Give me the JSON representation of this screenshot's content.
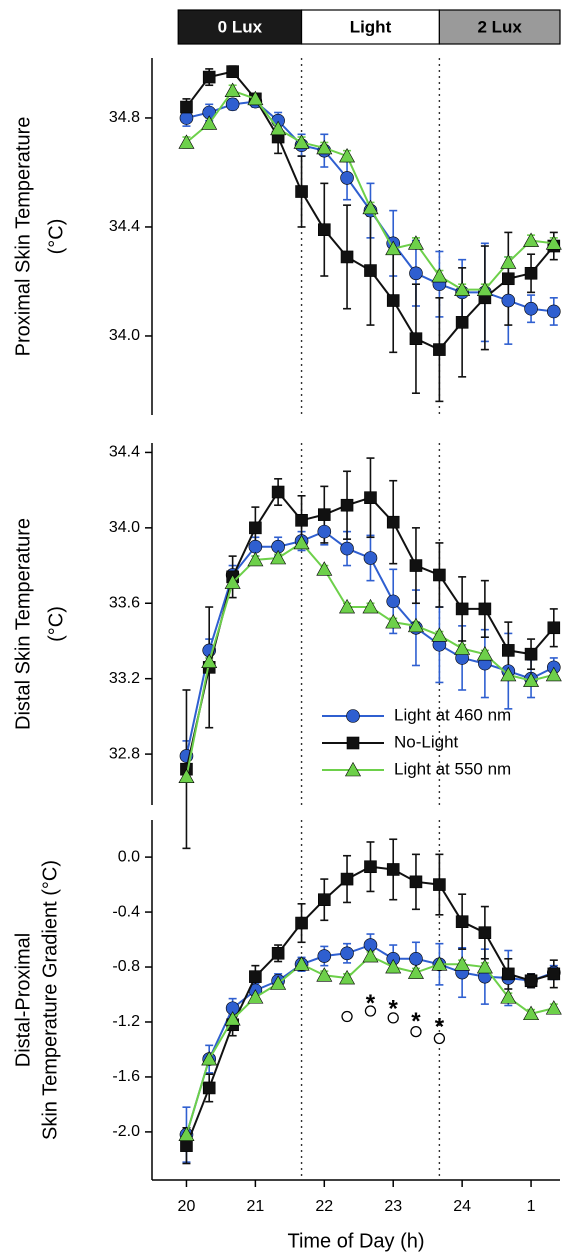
{
  "chart_data": [
    {
      "type": "line",
      "ylabel": [
        "Proximal Skin Temperature",
        "(°C)"
      ],
      "phases": [
        {
          "label": "0 Lux",
          "start": 19.88,
          "end": 21.67,
          "color": "#1a1a1a",
          "text_color": "#ffffff"
        },
        {
          "label": "Light",
          "start": 21.67,
          "end": 23.67,
          "color": "#ffffff",
          "text_color": "#000000"
        },
        {
          "label": "2 Lux",
          "start": 23.67,
          "end": 25.42,
          "color": "#9a9a9a",
          "text_color": "#000000"
        }
      ],
      "vlines": [
        21.67,
        23.67
      ],
      "x": [
        20,
        20.33,
        20.67,
        21,
        21.33,
        21.67,
        22,
        22.33,
        22.67,
        23,
        23.33,
        23.67,
        24,
        24.33,
        24.67,
        25,
        25.33
      ],
      "xlim": [
        19.5,
        25.42
      ],
      "ylim": [
        33.71,
        35.02
      ],
      "yticks": [
        {
          "value": 34,
          "label": "34.0"
        },
        34.4,
        34.8
      ],
      "series": [
        {
          "name": "Light at 460 nm",
          "color": "#2f5fd0",
          "marker": "circle",
          "values": [
            34.8,
            34.82,
            34.85,
            34.86,
            34.79,
            34.7,
            34.68,
            34.58,
            34.46,
            34.34,
            34.23,
            34.19,
            34.16,
            34.16,
            34.13,
            34.1,
            34.09
          ],
          "errors": [
            0.03,
            0.03,
            0.02,
            0.02,
            0.03,
            0.04,
            0.06,
            0.08,
            0.1,
            0.12,
            0.12,
            0.12,
            0.12,
            0.18,
            0.16,
            0.05,
            0.05
          ]
        },
        {
          "name": "No-Light",
          "color": "#111111",
          "marker": "square",
          "values": [
            34.84,
            34.95,
            34.97,
            34.87,
            34.73,
            34.53,
            34.39,
            34.29,
            34.24,
            34.13,
            33.99,
            33.95,
            34.05,
            34.14,
            34.21,
            34.23,
            34.33
          ],
          "errors": [
            0.03,
            0.03,
            0.02,
            0.02,
            0.06,
            0.13,
            0.17,
            0.19,
            0.2,
            0.19,
            0.2,
            0.19,
            0.2,
            0.19,
            0.17,
            0.07,
            0.05
          ]
        },
        {
          "name": "Light at 550 nm",
          "color": "#6dd04a",
          "marker": "triangle",
          "values": [
            34.71,
            34.78,
            34.9,
            34.87,
            34.76,
            34.71,
            34.69,
            34.66,
            34.47,
            34.32,
            34.34,
            34.22,
            34.17,
            34.17,
            34.27,
            34.35,
            34.34
          ],
          "errors": [
            0.02,
            0.02,
            0.02,
            0.02,
            0.02,
            0.02,
            0.02,
            0.02,
            0.02,
            0.02,
            0.02,
            0.02,
            0.02,
            0.02,
            0.02,
            0.02,
            0.02
          ]
        }
      ]
    },
    {
      "type": "line",
      "ylabel": [
        "Distal Skin Temperature",
        "(°C)"
      ],
      "vlines": [
        21.67,
        23.67
      ],
      "legend": "lower right",
      "x": [
        20,
        20.33,
        20.67,
        21,
        21.33,
        21.67,
        22,
        22.33,
        22.67,
        23,
        23.33,
        23.67,
        24,
        24.33,
        24.67,
        25,
        25.33
      ],
      "xlim": [
        19.5,
        25.42
      ],
      "ylim": [
        32.53,
        34.45
      ],
      "yticks": [
        32.8,
        33.2,
        33.6,
        {
          "value": 34,
          "label": "34.0"
        },
        34.4
      ],
      "series": [
        {
          "name": "Light at 460 nm",
          "color": "#2f5fd0",
          "marker": "circle",
          "values": [
            32.79,
            33.35,
            33.75,
            33.9,
            33.9,
            33.93,
            33.98,
            33.89,
            33.84,
            33.61,
            33.47,
            33.38,
            33.31,
            33.28,
            33.24,
            33.2,
            33.26
          ],
          "errors": [
            0.08,
            0.06,
            0.05,
            0.05,
            0.05,
            0.05,
            0.07,
            0.09,
            0.12,
            0.17,
            0.2,
            0.2,
            0.17,
            0.18,
            0.2,
            0.1,
            0.05
          ]
        },
        {
          "name": "No-Light",
          "color": "#111111",
          "marker": "square",
          "values": [
            32.72,
            33.26,
            33.74,
            34.0,
            34.19,
            34.04,
            34.07,
            34.12,
            34.16,
            34.03,
            33.8,
            33.75,
            33.57,
            33.57,
            33.35,
            33.33,
            33.47
          ],
          "errors": [
            0.42,
            0.32,
            0.11,
            0.11,
            0.07,
            0.13,
            0.15,
            0.18,
            0.21,
            0.22,
            0.2,
            0.17,
            0.17,
            0.15,
            0.15,
            0.08,
            0.1
          ]
        },
        {
          "name": "Light at 550 nm",
          "color": "#6dd04a",
          "marker": "triangle",
          "values": [
            32.68,
            33.29,
            33.71,
            33.83,
            33.84,
            33.92,
            33.78,
            33.58,
            33.58,
            33.5,
            33.48,
            33.43,
            33.36,
            33.33,
            33.22,
            33.19,
            33.22
          ],
          "errors": [
            0.02,
            0.02,
            0.02,
            0.02,
            0.02,
            0.02,
            0.02,
            0.02,
            0.02,
            0.02,
            0.02,
            0.02,
            0.02,
            0.02,
            0.02,
            0.02,
            0.02
          ]
        }
      ]
    },
    {
      "type": "line",
      "ylabel": [
        "Distal-Proximal",
        "Skin Temperature Gradient (°C)"
      ],
      "xlabel": "Time of Day (h)",
      "vlines": [
        21.67,
        23.67
      ],
      "x": [
        20,
        20.33,
        20.67,
        21,
        21.33,
        21.67,
        22,
        22.33,
        22.67,
        23,
        23.33,
        23.67,
        24,
        24.33,
        24.67,
        25,
        25.33
      ],
      "xlim": [
        19.5,
        25.42
      ],
      "xticks": [
        20,
        21,
        22,
        23,
        24,
        {
          "value": 25,
          "label": "1"
        }
      ],
      "ylim": [
        -2.35,
        0.27
      ],
      "yticks": [
        {
          "value": -2,
          "label": "-2.0"
        },
        -1.6,
        -1.2,
        -0.8,
        -0.4,
        {
          "value": 0,
          "label": "0.0"
        }
      ],
      "series": [
        {
          "name": "Light at 460 nm",
          "color": "#2f5fd0",
          "marker": "circle",
          "values": [
            -2.02,
            -1.47,
            -1.1,
            -0.97,
            -0.9,
            -0.78,
            -0.72,
            -0.7,
            -0.64,
            -0.74,
            -0.74,
            -0.78,
            -0.84,
            -0.87,
            -0.88,
            -0.9,
            -0.84
          ],
          "errors": [
            0.2,
            0.1,
            0.07,
            0.05,
            0.05,
            0.05,
            0.07,
            0.07,
            0.08,
            0.1,
            0.12,
            0.15,
            0.18,
            0.2,
            0.2,
            0.05,
            0.05
          ]
        },
        {
          "name": "No-Light",
          "color": "#111111",
          "marker": "square",
          "values": [
            -2.1,
            -1.68,
            -1.22,
            -0.87,
            -0.7,
            -0.48,
            -0.31,
            -0.16,
            -0.07,
            -0.09,
            -0.18,
            -0.2,
            -0.47,
            -0.55,
            -0.85,
            -0.9,
            -0.85
          ],
          "errors": [
            0.13,
            0.1,
            0.08,
            0.08,
            0.06,
            0.14,
            0.15,
            0.17,
            0.18,
            0.22,
            0.2,
            0.22,
            0.2,
            0.19,
            0.11,
            0.05,
            0.1
          ]
        },
        {
          "name": "Light at 550 nm",
          "color": "#6dd04a",
          "marker": "triangle",
          "values": [
            -2.02,
            -1.47,
            -1.18,
            -1.02,
            -0.92,
            -0.78,
            -0.86,
            -0.88,
            -0.72,
            -0.8,
            -0.84,
            -0.78,
            -0.78,
            -0.8,
            -1.02,
            -1.14,
            -1.1
          ],
          "errors": [
            0.03,
            0.03,
            0.03,
            0.03,
            0.03,
            0.03,
            0.03,
            0.03,
            0.03,
            0.03,
            0.03,
            0.03,
            0.03,
            0.03,
            0.03,
            0.03,
            0.03
          ]
        }
      ],
      "stars": [
        {
          "x": 22.67,
          "y": -1.03,
          "label": "*"
        },
        {
          "x": 23,
          "y": -1.07,
          "label": "*"
        },
        {
          "x": 23.33,
          "y": -1.16,
          "label": "*"
        },
        {
          "x": 23.67,
          "y": -1.2,
          "label": "*"
        }
      ],
      "circles": [
        {
          "x": 22.33,
          "y": -1.16
        },
        {
          "x": 22.67,
          "y": -1.12
        },
        {
          "x": 23,
          "y": -1.17
        },
        {
          "x": 23.33,
          "y": -1.27
        },
        {
          "x": 23.67,
          "y": -1.32
        }
      ]
    }
  ]
}
